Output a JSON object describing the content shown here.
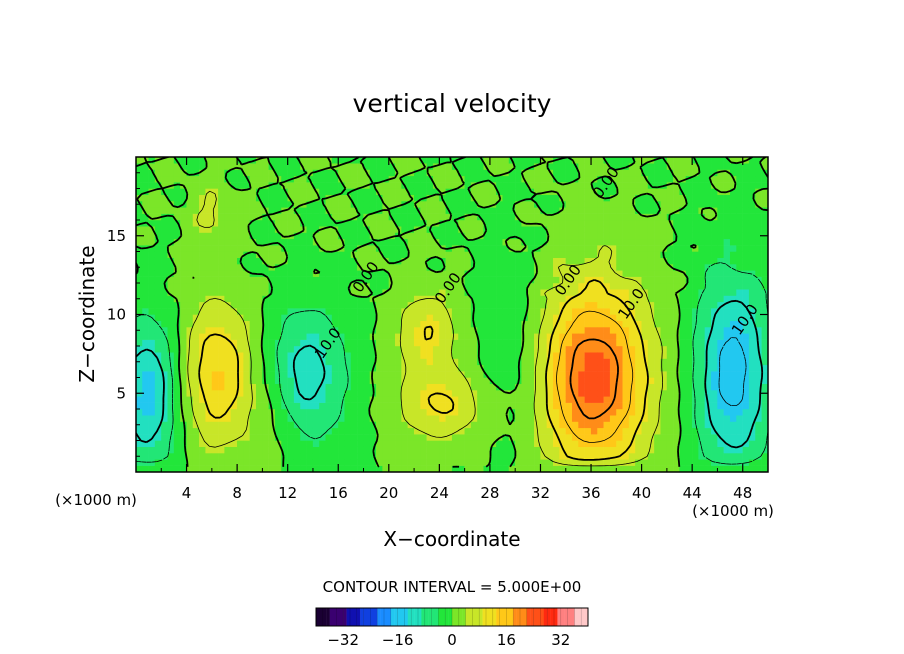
{
  "chart_data": {
    "type": "heatmap",
    "title": "vertical velocity",
    "xlabel": "X−coordinate",
    "ylabel": "Z−coordinate",
    "x_unit_left": "(×1000 m)",
    "x_unit_right": "(×1000 m)",
    "xlim": [
      0,
      50
    ],
    "ylim": [
      0,
      20
    ],
    "xticks": [
      4,
      8,
      12,
      16,
      20,
      24,
      28,
      32,
      36,
      40,
      44,
      48
    ],
    "yticks": [
      5,
      10,
      15
    ],
    "contour_interval_text": "CONTOUR INTERVAL = 5.000E+00",
    "contour_labels": [
      {
        "text": "0.00",
        "x": 18.5,
        "y": 12.2
      },
      {
        "text": "0.00",
        "x": 25.0,
        "y": 11.5
      },
      {
        "text": "0.00",
        "x": 34.5,
        "y": 12.0
      },
      {
        "text": "0.00",
        "x": 37.5,
        "y": 18.2
      },
      {
        "text": "10.0",
        "x": 15.5,
        "y": 8.0
      },
      {
        "text": "10.0",
        "x": 39.5,
        "y": 10.5
      },
      {
        "text": "10.0",
        "x": 48.5,
        "y": 9.5
      }
    ],
    "features": [
      {
        "x": 6.5,
        "y": 6.2,
        "sx": 2.2,
        "sy": 3.3,
        "amp": 14
      },
      {
        "x": 36.2,
        "y": 6.0,
        "sx": 3.2,
        "sy": 4.3,
        "amp": 24
      },
      {
        "x": 23.0,
        "y": 8.8,
        "sx": 1.8,
        "sy": 2.0,
        "amp": 10
      },
      {
        "x": 24.2,
        "y": 4.2,
        "sx": 2.6,
        "sy": 1.6,
        "amp": 10
      },
      {
        "x": 13.5,
        "y": 6.2,
        "sx": 2.4,
        "sy": 3.2,
        "amp": -12
      },
      {
        "x": 47.2,
        "y": 6.3,
        "sx": 2.2,
        "sy": 4.6,
        "amp": -17
      },
      {
        "x": 1.0,
        "y": 5.0,
        "sx": 1.8,
        "sy": 3.5,
        "amp": -15
      },
      {
        "x": 30.0,
        "y": 7.5,
        "sx": 2.0,
        "sy": 4.5,
        "amp": -5
      },
      {
        "x": 6.0,
        "y": 16.5,
        "sx": 1.2,
        "sy": 1.3,
        "amp": 6
      },
      {
        "x": 11.0,
        "y": 3.0,
        "sx": 1.5,
        "sy": 2.5,
        "amp": 3
      }
    ],
    "colorbar": {
      "ticks": [
        -32,
        -16,
        0,
        16,
        32
      ],
      "range": [
        -40,
        40
      ],
      "colors": [
        "#1a0033",
        "#3a0070",
        "#1010b0",
        "#1040e0",
        "#1a8cff",
        "#22c8f0",
        "#22e0c0",
        "#22e676",
        "#22e63a",
        "#7be628",
        "#c8e628",
        "#f0e020",
        "#ffc818",
        "#ff8c18",
        "#ff5018",
        "#ff2a10",
        "#ff8080",
        "#ffc8c8"
      ]
    }
  }
}
